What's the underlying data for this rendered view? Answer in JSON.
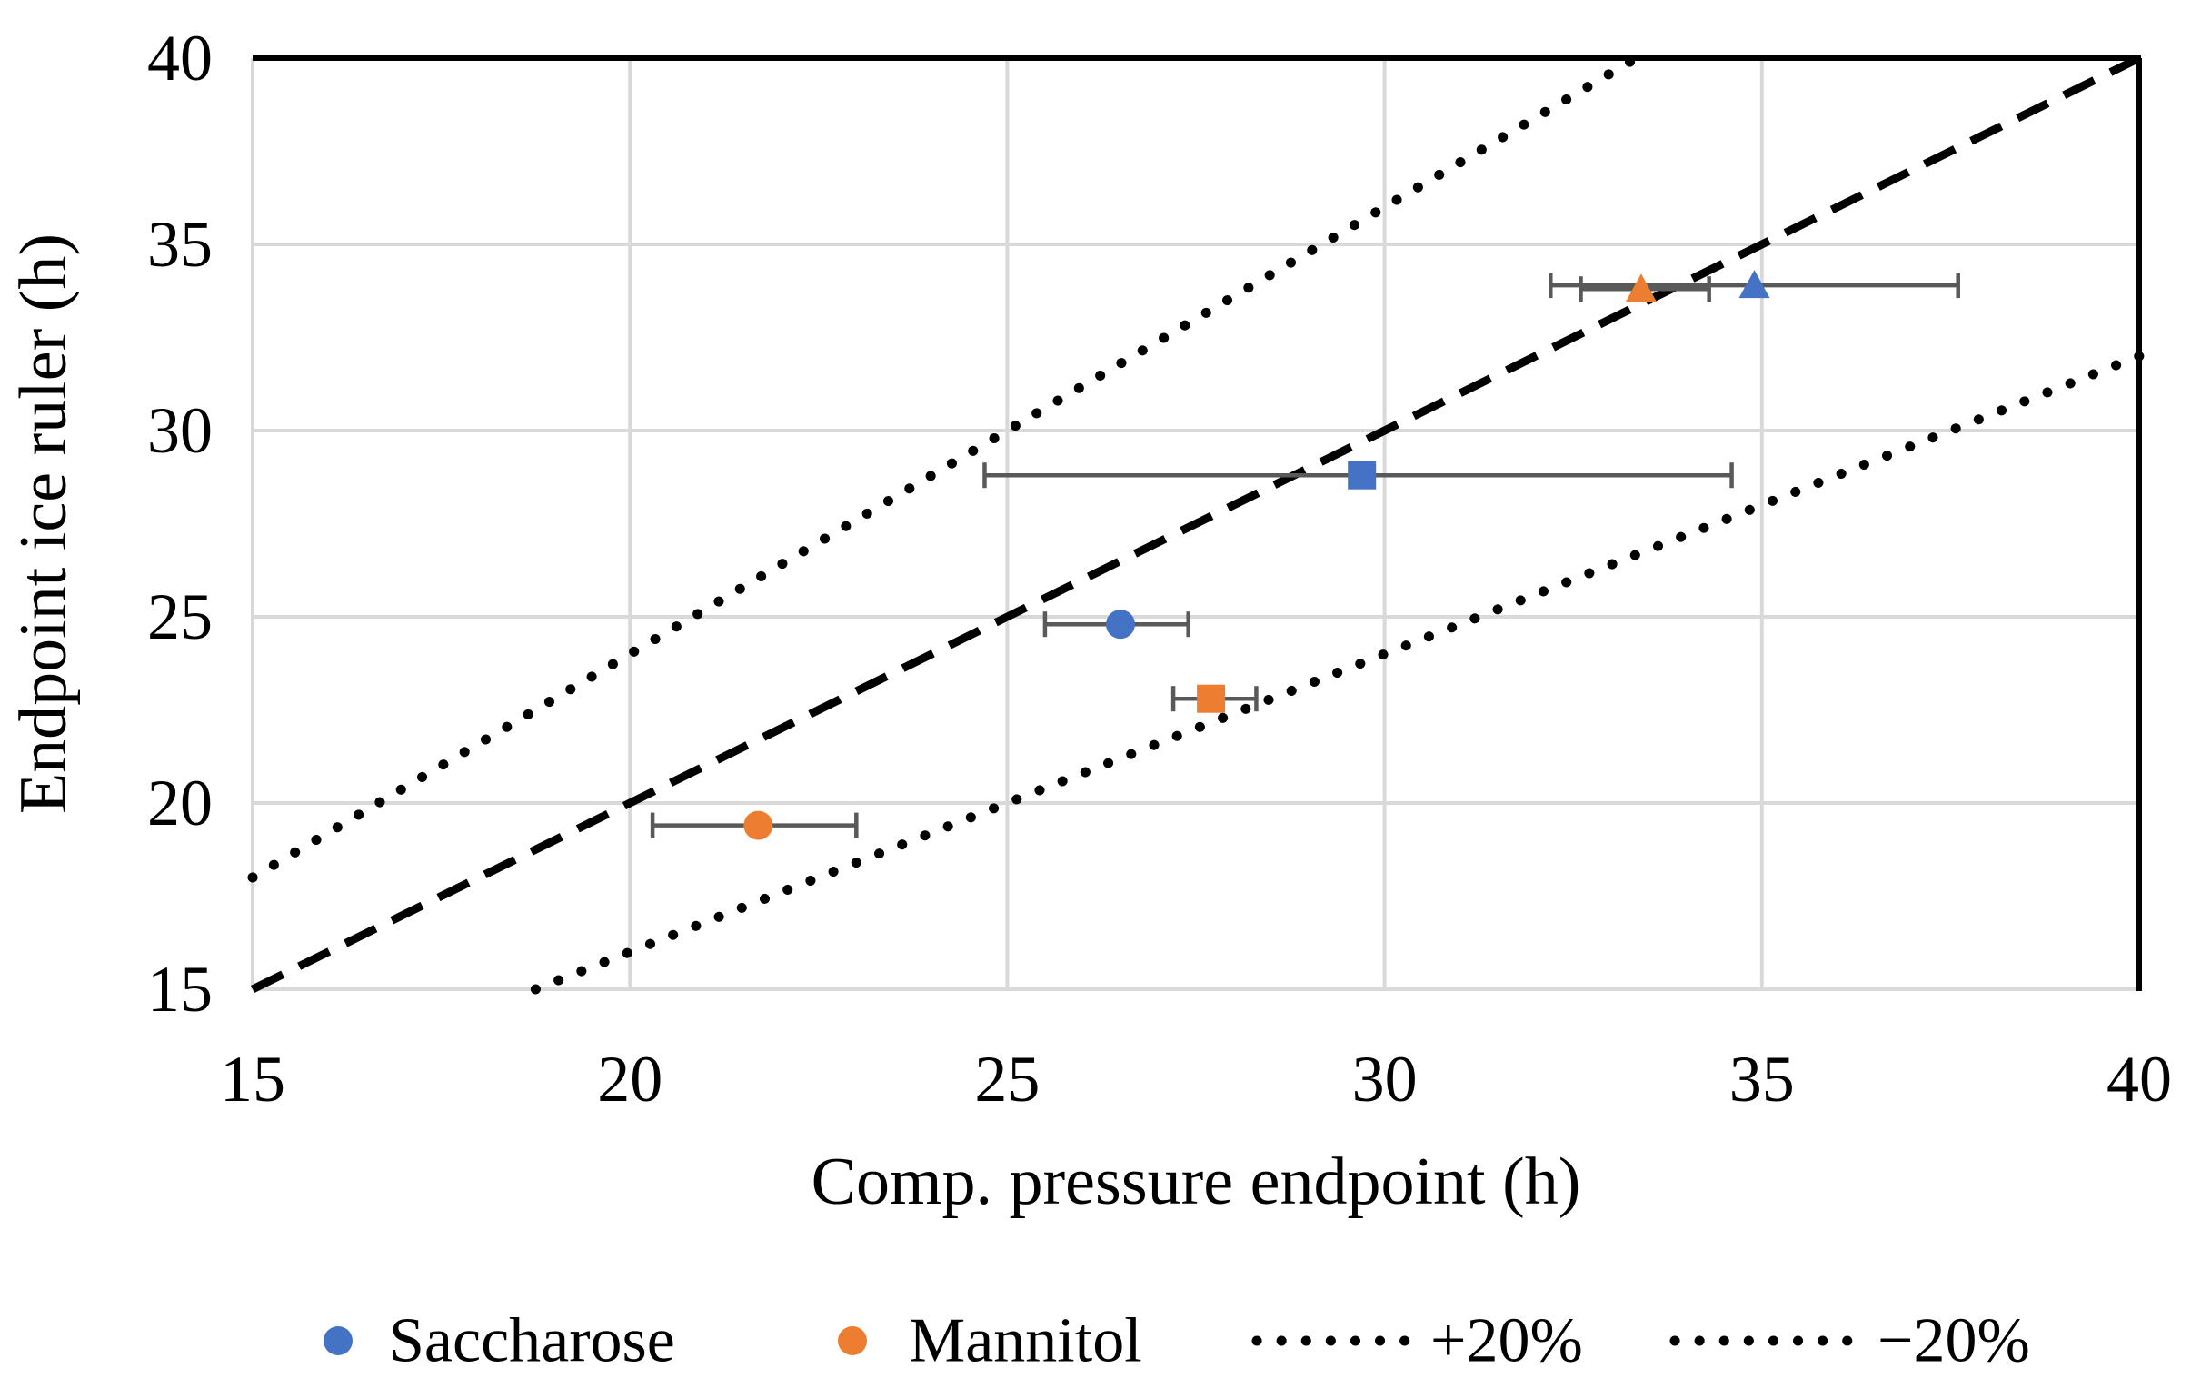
{
  "chart_data": {
    "type": "scatter",
    "title": "",
    "xlabel": "Comp. pressure endpoint (h)",
    "ylabel": "Endpoint ice ruler (h)",
    "xlim": [
      15,
      40
    ],
    "ylim": [
      15,
      40
    ],
    "xticks": [
      15,
      20,
      25,
      30,
      35,
      40
    ],
    "yticks": [
      15,
      20,
      25,
      30,
      35,
      40
    ],
    "grid": true,
    "legend_position": "bottom-center",
    "series": [
      {
        "name": "Saccharose",
        "color": "#4472C4",
        "points": [
          {
            "shape": "circle",
            "x": 26.5,
            "y": 24.8,
            "xerr_minus": 1.0,
            "xerr_plus": 0.9
          },
          {
            "shape": "square",
            "x": 29.7,
            "y": 28.8,
            "xerr_minus": 5.0,
            "xerr_plus": 4.9
          },
          {
            "shape": "triangle",
            "x": 34.9,
            "y": 33.9,
            "xerr_minus": 2.7,
            "xerr_plus": 2.7
          }
        ]
      },
      {
        "name": "Mannitol",
        "color": "#ED7D31",
        "points": [
          {
            "shape": "circle",
            "x": 21.7,
            "y": 19.4,
            "xerr_minus": 1.4,
            "xerr_plus": 1.3
          },
          {
            "shape": "square",
            "x": 27.7,
            "y": 22.8,
            "xerr_minus": 0.5,
            "xerr_plus": 0.6
          },
          {
            "shape": "triangle",
            "x": 33.4,
            "y": 33.8,
            "xerr_minus": 0.8,
            "xerr_plus": 0.9
          }
        ]
      }
    ],
    "reference_lines": [
      {
        "name": "identity",
        "style": "dashed",
        "from": [
          15,
          15
        ],
        "to": [
          40,
          40
        ]
      },
      {
        "name": "+20%",
        "style": "dotted",
        "slope": 1.2
      },
      {
        "name": "-20%",
        "style": "dotted",
        "slope": 0.8
      }
    ],
    "legend": [
      {
        "label": "Saccharose",
        "marker": "circle",
        "color": "#4472C4"
      },
      {
        "label": "Mannitol",
        "marker": "circle",
        "color": "#ED7D31"
      },
      {
        "label": "+20%",
        "marker": "dotted-line",
        "color": "#000000"
      },
      {
        "label": "−20%",
        "marker": "dotted-line",
        "color": "#000000"
      }
    ],
    "colors": {
      "grid": "#D9D9D9",
      "plot_border": "#000000",
      "error_bar": "#595959",
      "reference_line": "#000000"
    }
  }
}
